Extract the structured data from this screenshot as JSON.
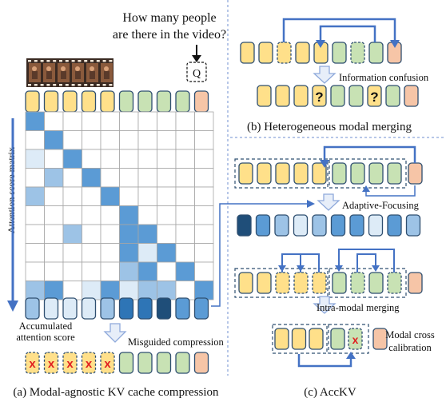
{
  "panel_a": {
    "question_line1": "How many people",
    "question_line2": "are there in the video?",
    "q_token": "Q",
    "matrix_label": "Attention score matrix",
    "accum_line1": "Accumulated",
    "accum_line2": "attention score",
    "misguided": "Misguided compression",
    "evicted_mark": "x",
    "caption": "(a) Modal-agnostic KV cache compression"
  },
  "panel_b": {
    "confusion": "Information confusion",
    "unknown_mark": "?",
    "caption": "(b) Heterogeneous modal merging"
  },
  "panel_c": {
    "adaptive": "Adaptive-Focusing",
    "intra": "Intra-modal merging",
    "cross_line1": "Modal cross",
    "cross_line2": "calibration",
    "evicted_mark": "x",
    "caption": "(c) AccKV"
  },
  "colors": {
    "yellow": "#FFE08A",
    "green": "#C8E2B4",
    "peach": "#F6C5A7",
    "token_stroke": "#2F4F70",
    "arrow_blue": "#4472C4",
    "hollow_arrow_fill": "#E7EEF9",
    "hollow_arrow_stroke": "#8EA9DB",
    "red_x": "#E02020",
    "dashed_divider": "#6F8FD0",
    "grid_line": "#A6A6A6",
    "scale_light": "#DDEBF7",
    "scale_mid": "#9DC3E6",
    "scale_strong": "#5B9BD5",
    "scale_dark": "#2E75B6",
    "scale_darkest": "#1F4E79"
  },
  "attention_matrix": [
    [
      3,
      0,
      0,
      0,
      0,
      0,
      0,
      0,
      0,
      0
    ],
    [
      0,
      3,
      0,
      0,
      0,
      0,
      0,
      0,
      0,
      0
    ],
    [
      1,
      0,
      3,
      0,
      0,
      0,
      0,
      0,
      0,
      0
    ],
    [
      0,
      2,
      0,
      3,
      0,
      0,
      0,
      0,
      0,
      0
    ],
    [
      2,
      0,
      0,
      0,
      3,
      0,
      0,
      0,
      0,
      0
    ],
    [
      0,
      0,
      0,
      0,
      0,
      3,
      0,
      0,
      0,
      0
    ],
    [
      0,
      0,
      2,
      0,
      0,
      3,
      3,
      0,
      0,
      0
    ],
    [
      0,
      0,
      0,
      0,
      0,
      3,
      1,
      3,
      0,
      0
    ],
    [
      0,
      0,
      0,
      0,
      0,
      2,
      3,
      0,
      3,
      0
    ],
    [
      2,
      3,
      0,
      1,
      3,
      1,
      2,
      2,
      0,
      3
    ]
  ],
  "accumulated_scores": [
    2,
    1,
    1,
    1,
    2,
    4,
    4,
    5,
    3,
    3
  ],
  "focused_scores": [
    5,
    3,
    2,
    1,
    2,
    3,
    3,
    1,
    3,
    2
  ],
  "icons": [
    "film-strip-icon",
    "audio-waveform-icon"
  ]
}
